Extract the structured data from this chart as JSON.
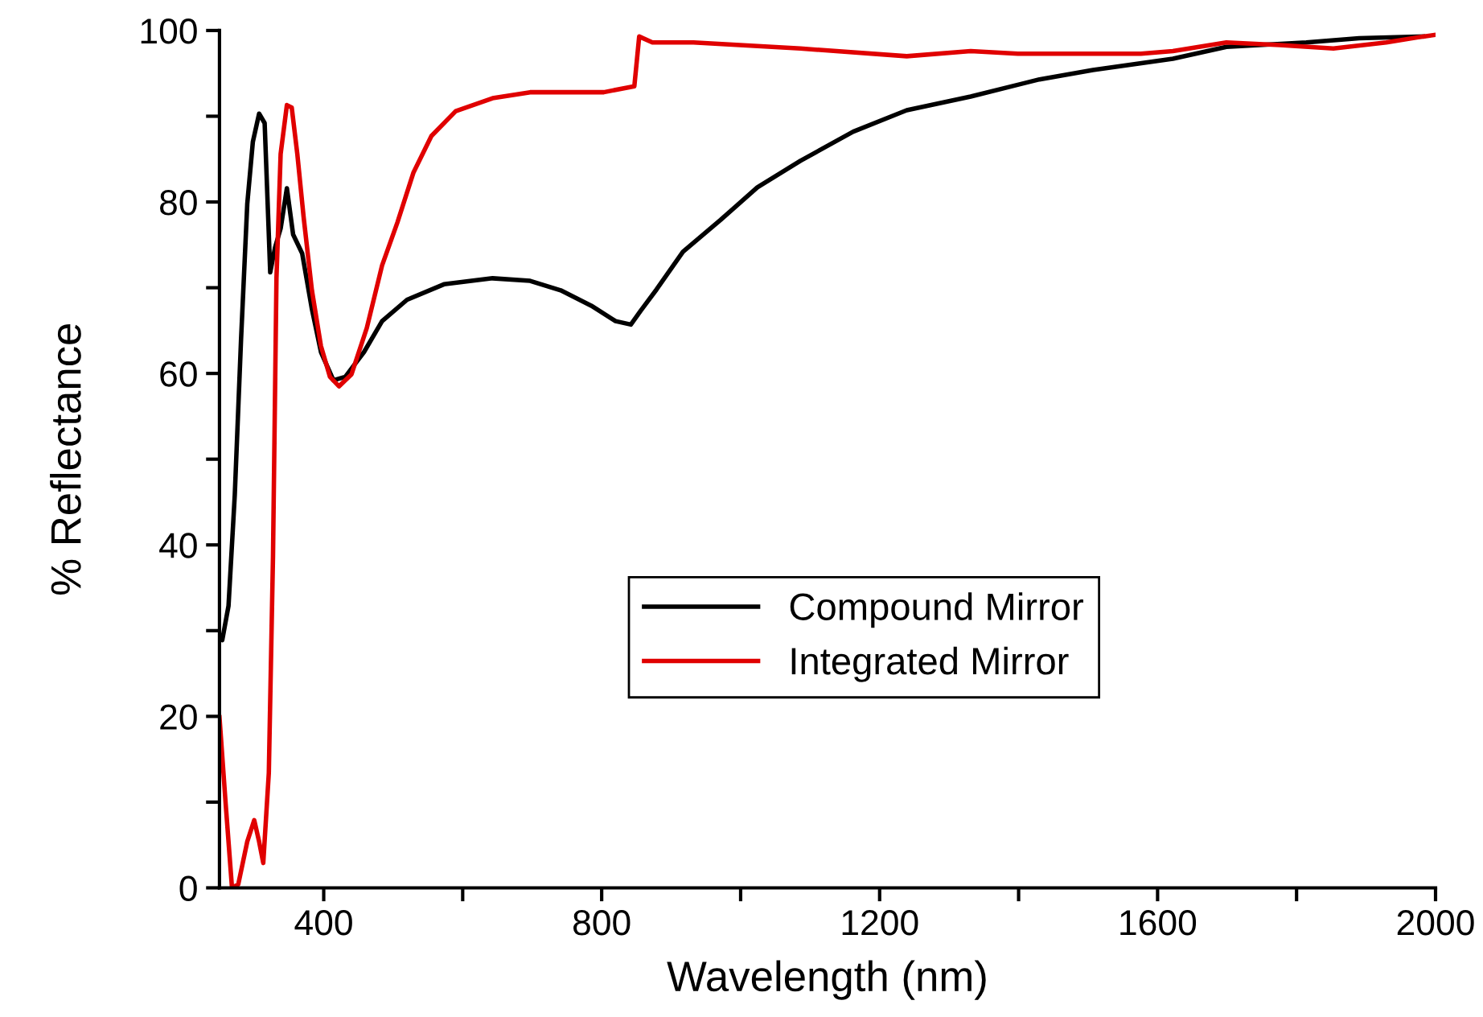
{
  "chart_data": {
    "type": "line",
    "xlabel": "Wavelength (nm)",
    "ylabel": "% Reflectance",
    "xlim": [
      250,
      2000
    ],
    "ylim": [
      0,
      100
    ],
    "xticks": [
      400,
      {
        "value": 600,
        "label": null
      },
      800,
      {
        "value": 1000,
        "label": null
      },
      1200,
      {
        "value": 1400,
        "label": null
      },
      1600,
      {
        "value": 1800,
        "label": null
      },
      2000
    ],
    "yticks": [
      0,
      {
        "value": 10,
        "label": null
      },
      20,
      {
        "value": 30,
        "label": null
      },
      40,
      {
        "value": 50,
        "label": null
      },
      60,
      {
        "value": 70,
        "label": null
      },
      80,
      {
        "value": 90,
        "label": null
      },
      100
    ],
    "grid": false,
    "legend": "bottom",
    "line_style": "solid",
    "marker": "none",
    "series": [
      {
        "name": "Compound Mirror",
        "color": "#000000",
        "x": [
          250,
          254,
          263,
          272,
          281,
          290,
          298,
          307,
          315,
          321,
          323,
          330,
          338,
          347,
          356,
          369,
          383,
          396,
          414,
          431,
          458,
          484,
          520,
          573,
          643,
          697,
          741,
          785,
          820,
          842,
          856,
          879,
          917,
          971,
          1024,
          1086,
          1162,
          1239,
          1331,
          1430,
          1507,
          1622,
          1699,
          1814,
          1890,
          1982
        ],
        "values": [
          29.2,
          28.9,
          32.9,
          45.8,
          63.9,
          79.8,
          87,
          90.3,
          89.2,
          76.2,
          71.8,
          74.7,
          76.9,
          81.6,
          76.2,
          74,
          67.5,
          62.5,
          59.2,
          59.6,
          62.5,
          66.1,
          68.6,
          70.4,
          71.1,
          70.8,
          69.7,
          67.9,
          66.1,
          65.7,
          67.3,
          69.8,
          74.2,
          77.9,
          81.7,
          84.8,
          88.2,
          90.7,
          92.3,
          94.3,
          95.4,
          96.7,
          98.1,
          98.6,
          99.1,
          99.3
        ]
      },
      {
        "name": "Integrated Mirror",
        "color": "#e00000",
        "x": [
          250,
          259,
          268,
          277,
          290,
          300,
          307,
          313,
          321,
          327,
          332,
          338,
          347,
          354,
          362,
          371,
          383,
          396,
          409,
          422,
          440,
          462,
          484,
          506,
          529,
          555,
          590,
          643,
          697,
          750,
          803,
          847,
          854,
          873,
          932,
          1086,
          1239,
          1331,
          1399,
          1576,
          1622,
          1699,
          1776,
          1853,
          1929,
          1982,
          2000
        ],
        "values": [
          19.9,
          9.7,
          0,
          0.4,
          5.4,
          7.9,
          5.4,
          2.9,
          13.4,
          38.6,
          71.1,
          85.6,
          91.3,
          91,
          85.6,
          78.3,
          69.7,
          63.2,
          59.6,
          58.5,
          59.9,
          65.3,
          72.6,
          77.6,
          83.4,
          87.7,
          90.6,
          92.1,
          92.8,
          92.8,
          92.8,
          93.5,
          99.3,
          98.6,
          98.6,
          97.9,
          97,
          97.6,
          97.3,
          97.3,
          97.6,
          98.6,
          98.3,
          97.9,
          98.6,
          99.3,
          99.5
        ]
      }
    ]
  }
}
